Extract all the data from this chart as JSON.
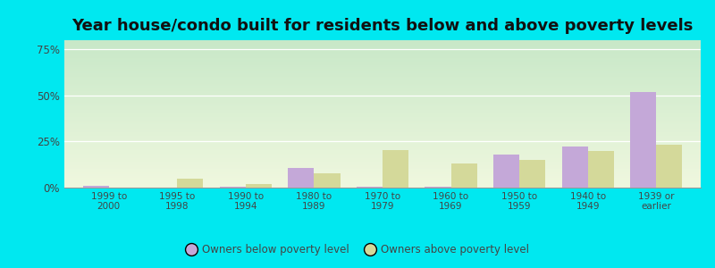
{
  "title": "Year house/condo built for residents below and above poverty levels",
  "categories": [
    "1999 to\n2000",
    "1995 to\n1998",
    "1990 to\n1994",
    "1980 to\n1989",
    "1970 to\n1979",
    "1960 to\n1969",
    "1950 to\n1959",
    "1940 to\n1949",
    "1939 or\nearlier"
  ],
  "below_poverty": [
    1.0,
    0.2,
    0.5,
    10.5,
    0.3,
    0.3,
    18.0,
    22.5,
    52.0
  ],
  "above_poverty": [
    0.2,
    5.0,
    2.0,
    8.0,
    20.5,
    13.0,
    15.0,
    20.0,
    23.5
  ],
  "below_color": "#c4a8d8",
  "above_color": "#d4d99a",
  "yticks": [
    0,
    25,
    50,
    75
  ],
  "ylim": [
    0,
    80
  ],
  "outer_background": "#00e8f0",
  "title_fontsize": 13,
  "legend_below": "Owners below poverty level",
  "legend_above": "Owners above poverty level",
  "bar_width": 0.38
}
